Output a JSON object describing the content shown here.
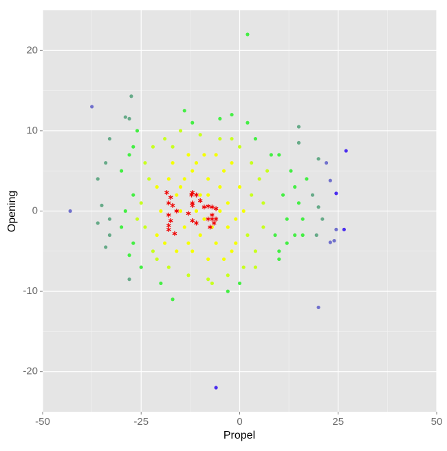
{
  "chart_data": {
    "type": "scatter",
    "x_label": "Propel",
    "y_label": "Opening",
    "xlim": [
      -50,
      50
    ],
    "ylim": [
      -25,
      25
    ],
    "xticks": [
      -50,
      -25,
      0,
      25,
      50
    ],
    "yticks": [
      -20,
      -10,
      0,
      10,
      20
    ],
    "grid": true,
    "series": [
      {
        "color": "#f5ff00",
        "marker": "circle",
        "x": [
          -15,
          -12,
          -10,
          -8,
          -5,
          -3,
          -14,
          -10,
          -6,
          -3,
          -18,
          -20,
          -16,
          -12,
          -8,
          -4,
          -1,
          0,
          -2,
          -9,
          -13,
          -17,
          -21,
          -21,
          -19,
          -7,
          -11,
          -5,
          -15,
          -9,
          -1,
          -6,
          -14,
          -16,
          -4,
          -11,
          -13,
          -8,
          1,
          -2
        ],
        "y": [
          3,
          5,
          2,
          4,
          3,
          1,
          -2,
          -3,
          -4,
          -2,
          4,
          0,
          -5,
          -5,
          -6,
          5,
          -1,
          3,
          6,
          7,
          7,
          6,
          3,
          -3,
          -4,
          -2,
          0,
          0,
          0,
          -1,
          -4,
          7,
          4,
          2,
          -6,
          6,
          -4,
          2,
          0,
          -5
        ]
      },
      {
        "color": "#c8ff1e",
        "marker": "circle",
        "x": [
          -24,
          -22,
          -19,
          -15,
          -10,
          -5,
          0,
          3,
          5,
          6,
          6,
          4,
          1,
          -3,
          -8,
          -13,
          -18,
          -22,
          -24,
          -25,
          2,
          3,
          -23,
          -21,
          -2,
          -7,
          7,
          -17,
          4,
          -26
        ],
        "y": [
          6,
          8,
          9,
          10,
          9.5,
          9,
          8,
          6,
          4,
          1,
          -2,
          -5,
          -7,
          -8,
          -8.5,
          -8,
          -7,
          -5,
          -2,
          1,
          -3,
          2,
          4,
          -6,
          9,
          -9,
          5,
          8,
          -7,
          -1
        ]
      },
      {
        "color": "#44ee44",
        "marker": "circle",
        "x": [
          -30,
          -27,
          -26,
          -28,
          -27,
          -30,
          -27,
          -29,
          17,
          16,
          14,
          13,
          11,
          10,
          12,
          15,
          -17,
          -20,
          0,
          10,
          -5,
          -2,
          -14,
          4,
          8,
          12,
          10,
          -25,
          -28,
          14,
          16,
          9,
          -3,
          -12,
          2,
          2
        ],
        "y": [
          5,
          8,
          10,
          -5.5,
          -4,
          -2,
          2,
          0,
          4,
          -1,
          -3,
          5,
          2,
          -5,
          -1,
          1,
          -11,
          -9,
          -9,
          -6,
          11.5,
          12,
          12.5,
          9,
          7,
          -4,
          7,
          -7,
          7,
          3,
          -3,
          -3,
          -10,
          11,
          11,
          22
        ]
      },
      {
        "color": "#66aa88",
        "marker": "circle",
        "x": [
          -33,
          -27.5,
          -29,
          -28,
          -34,
          -36,
          -35,
          -36,
          -33,
          -33,
          -34,
          -28,
          20,
          21,
          19.5,
          20,
          18.5,
          15,
          15
        ],
        "y": [
          9,
          14.3,
          11.7,
          11.5,
          6,
          4,
          0.7,
          -1.5,
          -1,
          -3,
          -4.5,
          -8.5,
          6.5,
          -1,
          -3,
          0.5,
          2,
          10.5,
          8.5
        ]
      },
      {
        "color": "#7070cc",
        "marker": "circle",
        "x": [
          -43,
          -37.5,
          23,
          22,
          24.5,
          23,
          24,
          20
        ],
        "y": [
          0,
          13,
          3.8,
          6,
          -2.3,
          -3.9,
          -3.7,
          -12
        ]
      },
      {
        "color": "#4a2cee",
        "marker": "circle",
        "x": [
          27,
          24.5,
          26.5,
          -6
        ],
        "y": [
          7.5,
          2.2,
          -2.3,
          -22
        ]
      },
      {
        "color": "#ee0000",
        "marker": "asterisk",
        "x": [
          -18.5,
          -17.5,
          -18,
          -17,
          -16,
          -18,
          -17.5,
          -18,
          -18,
          -16.5,
          -12,
          -12.2,
          -11,
          -10,
          -12,
          -12,
          -9,
          -13,
          -12,
          -11,
          -8,
          -7,
          -6,
          -7,
          -7,
          -6,
          -6.5,
          -7.5,
          -8
        ],
        "y": [
          2.3,
          1.7,
          1,
          0.7,
          0,
          -0.5,
          -1.2,
          -1.8,
          -2.3,
          -2.8,
          2.3,
          2,
          2,
          1.3,
          1,
          0.7,
          0.5,
          -0.3,
          -1.2,
          -1.5,
          0.6,
          0.5,
          0.3,
          -0.5,
          -1,
          -1,
          -1.5,
          -2,
          -1
        ]
      }
    ]
  }
}
